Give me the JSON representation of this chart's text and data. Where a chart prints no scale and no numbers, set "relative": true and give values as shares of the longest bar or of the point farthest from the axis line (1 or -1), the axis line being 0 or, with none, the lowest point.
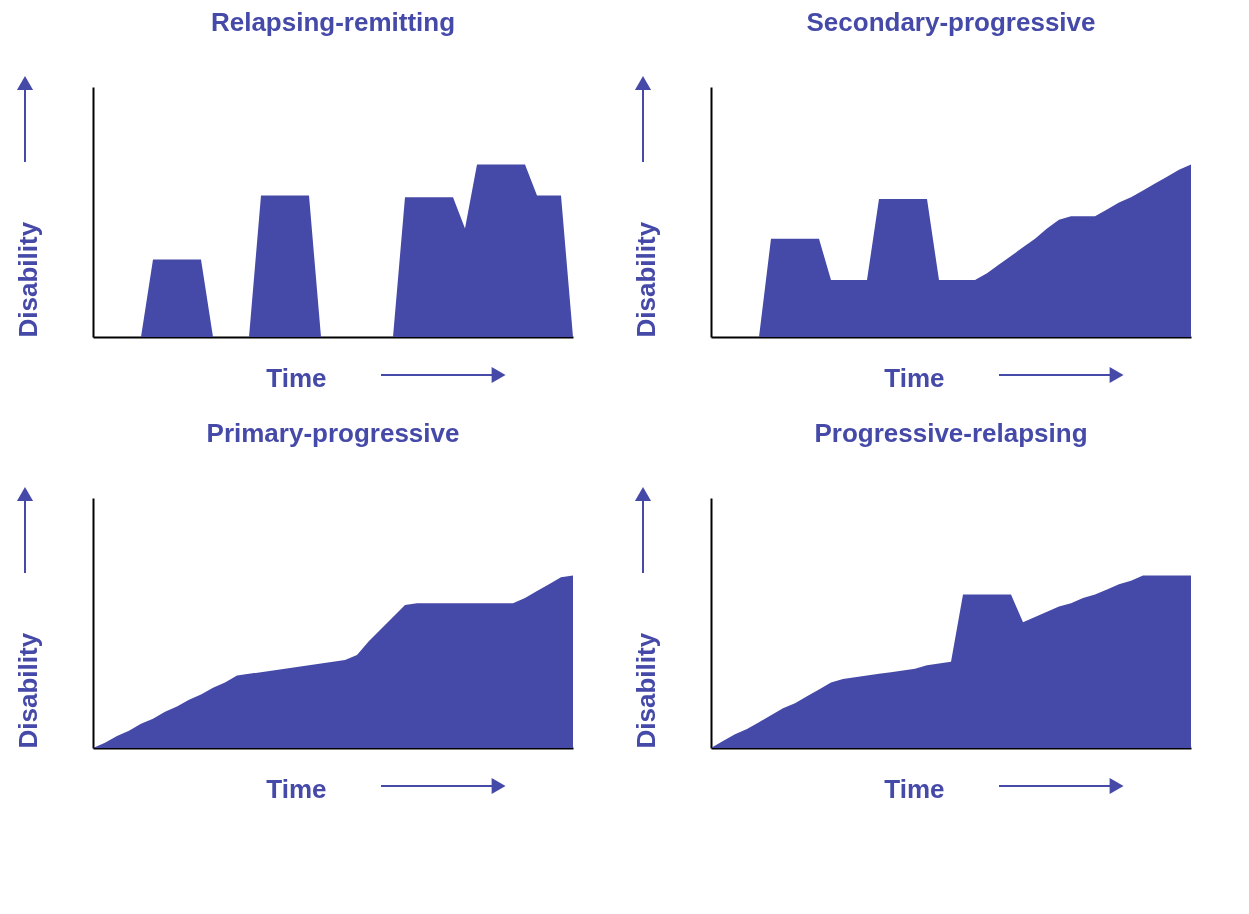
{
  "chart_data": [
    {
      "type": "area",
      "title": "Relapsing-remitting",
      "xlabel": "Time",
      "ylabel": "Disability",
      "relative": true,
      "categories": [
        null,
        null,
        null,
        null,
        null,
        null,
        null,
        null,
        null,
        null,
        null,
        null,
        null,
        null,
        null,
        null,
        null,
        null,
        null,
        null,
        null,
        null,
        null,
        null,
        null,
        null,
        null,
        null,
        null,
        null,
        null,
        null,
        null,
        null,
        null,
        null,
        null,
        null,
        null,
        null,
        null
      ],
      "series": [
        {
          "color": "#4549a8",
          "values": [
            0,
            0,
            0,
            0,
            0,
            0.45,
            0.45,
            0.45,
            0.45,
            0.45,
            0,
            0,
            0,
            0,
            0.82,
            0.82,
            0.82,
            0.82,
            0.82,
            0,
            0,
            0,
            0,
            0,
            0,
            0,
            0.81,
            0.81,
            0.81,
            0.81,
            0.81,
            0.63,
            1,
            1,
            1,
            1,
            1,
            0.82,
            0.82,
            0.82,
            0
          ]
        }
      ]
    },
    {
      "type": "area",
      "title": "Secondary-progressive",
      "xlabel": "Time",
      "ylabel": "Disability",
      "relative": true,
      "categories": [
        null,
        null,
        null,
        null,
        null,
        null,
        null,
        null,
        null,
        null,
        null,
        null,
        null,
        null,
        null,
        null,
        null,
        null,
        null,
        null,
        null,
        null,
        null,
        null,
        null,
        null,
        null,
        null,
        null,
        null,
        null,
        null,
        null,
        null,
        null,
        null,
        null,
        null,
        null,
        null,
        null
      ],
      "series": [
        {
          "color": "#4549a8",
          "values": [
            0,
            0,
            0,
            0,
            0,
            0.57,
            0.57,
            0.57,
            0.57,
            0.57,
            0.33,
            0.33,
            0.33,
            0.33,
            0.8,
            0.8,
            0.8,
            0.8,
            0.8,
            0.33,
            0.33,
            0.33,
            0.33,
            0.37,
            0.42,
            0.47,
            0.52,
            0.57,
            0.63,
            0.68,
            0.7,
            0.7,
            0.7,
            0.74,
            0.78,
            0.81,
            0.85,
            0.89,
            0.93,
            0.97,
            1
          ]
        }
      ]
    },
    {
      "type": "area",
      "title": "Primary-progressive",
      "xlabel": "Time",
      "ylabel": "Disability",
      "relative": true,
      "categories": [
        null,
        null,
        null,
        null,
        null,
        null,
        null,
        null,
        null,
        null,
        null,
        null,
        null,
        null,
        null,
        null,
        null,
        null,
        null,
        null,
        null,
        null,
        null,
        null,
        null,
        null,
        null,
        null,
        null,
        null,
        null,
        null,
        null,
        null,
        null,
        null,
        null,
        null,
        null,
        null,
        null
      ],
      "series": [
        {
          "color": "#4549a8",
          "values": [
            0,
            0.03,
            0.07,
            0.1,
            0.14,
            0.17,
            0.21,
            0.24,
            0.28,
            0.31,
            0.35,
            0.38,
            0.42,
            0.43,
            0.44,
            0.45,
            0.46,
            0.47,
            0.48,
            0.49,
            0.5,
            0.51,
            0.54,
            0.62,
            0.69,
            0.76,
            0.83,
            0.84,
            0.84,
            0.84,
            0.84,
            0.84,
            0.84,
            0.84,
            0.84,
            0.84,
            0.87,
            0.91,
            0.95,
            0.99,
            1
          ]
        }
      ]
    },
    {
      "type": "area",
      "title": "Progressive-relapsing",
      "xlabel": "Time",
      "ylabel": "Disability",
      "relative": true,
      "categories": [
        null,
        null,
        null,
        null,
        null,
        null,
        null,
        null,
        null,
        null,
        null,
        null,
        null,
        null,
        null,
        null,
        null,
        null,
        null,
        null,
        null,
        null,
        null,
        null,
        null,
        null,
        null,
        null,
        null,
        null,
        null,
        null,
        null,
        null,
        null,
        null,
        null,
        null,
        null,
        null,
        null
      ],
      "series": [
        {
          "color": "#4549a8",
          "values": [
            0,
            0.04,
            0.08,
            0.11,
            0.15,
            0.19,
            0.23,
            0.26,
            0.3,
            0.34,
            0.38,
            0.4,
            0.41,
            0.42,
            0.43,
            0.44,
            0.45,
            0.46,
            0.48,
            0.49,
            0.5,
            0.89,
            0.89,
            0.89,
            0.89,
            0.89,
            0.73,
            0.76,
            0.79,
            0.82,
            0.84,
            0.87,
            0.89,
            0.92,
            0.95,
            0.97,
            1,
            1,
            1,
            1,
            1
          ]
        }
      ]
    }
  ]
}
